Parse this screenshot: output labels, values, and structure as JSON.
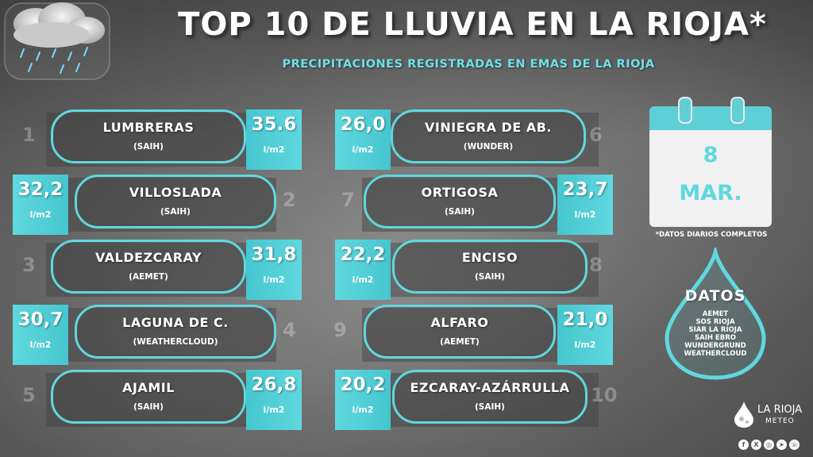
{
  "header": {
    "title": "TOP 10 DE LLUVIA EN LA RIOJA*",
    "subtitle": "PRECIPITACIONES REGISTRADAS EN EMAS DE LA RIOJA"
  },
  "unit": "l/m2",
  "stations": [
    {
      "rank": "1",
      "name": "LUMBRERAS",
      "source": "(SAIH)",
      "value": "35.6"
    },
    {
      "rank": "2",
      "name": "VILLOSLADA",
      "source": "(SAIH)",
      "value": "32,2"
    },
    {
      "rank": "3",
      "name": "VALDEZCARAY",
      "source": "(AEMET)",
      "value": "31,8"
    },
    {
      "rank": "4",
      "name": "LAGUNA DE C.",
      "source": "(WEATHERCLOUD)",
      "value": "30,7"
    },
    {
      "rank": "5",
      "name": "AJAMIL",
      "source": "(SAIH)",
      "value": "26,8"
    },
    {
      "rank": "6",
      "name": "VINIEGRA DE AB.",
      "source": "(WUNDER)",
      "value": "26,0"
    },
    {
      "rank": "7",
      "name": "ORTIGOSA",
      "source": "(SAIH)",
      "value": "23,7"
    },
    {
      "rank": "8",
      "name": "ENCISO",
      "source": "(SAIH)",
      "value": "22,2"
    },
    {
      "rank": "9",
      "name": "ALFARO",
      "source": "(AEMET)",
      "value": "21,0"
    },
    {
      "rank": "10",
      "name": "EZCARAY-AZÁRRULLA",
      "source": "(SAIH)",
      "value": "20,2"
    }
  ],
  "calendar": {
    "day": "8",
    "month": "MAR.",
    "note": "*DATOS DIARIOS COMPLETOS"
  },
  "data_sources": {
    "title": "DATOS",
    "items": [
      "AEMET",
      "SOS RIOJA",
      "SIAR LA RIOJA",
      "SAIH EBRO",
      "WUNDERGRUND",
      "WEATHERCLOUD"
    ]
  },
  "brand": {
    "name": "LA RIOJA",
    "sub": "METEO"
  },
  "colors": {
    "accent": "#5fd8df",
    "text": "#ffffff"
  },
  "social_icons": [
    "facebook-icon",
    "x-icon",
    "instagram-icon",
    "telegram-icon",
    "whatsapp-icon"
  ]
}
